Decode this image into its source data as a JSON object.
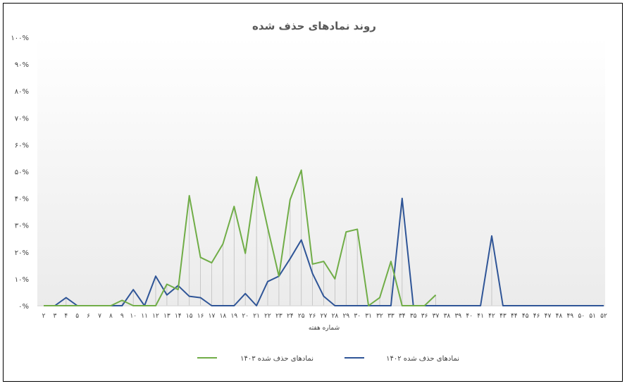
{
  "chart_data": {
    "type": "line",
    "title": "روند نمادهای حذف شده",
    "xlabel": "شماره هفته",
    "ylabel": "",
    "ylim": [
      0,
      100
    ],
    "ytick_labels": [
      "۰%",
      "۱۰%",
      "۲۰%",
      "۳۰%",
      "۴۰%",
      "۵۰%",
      "۶۰%",
      "۷۰%",
      "۸۰%",
      "۹۰%",
      "۱۰۰%"
    ],
    "x": [
      2,
      3,
      4,
      5,
      6,
      7,
      8,
      9,
      10,
      11,
      12,
      13,
      14,
      15,
      16,
      17,
      18,
      19,
      20,
      21,
      22,
      23,
      24,
      25,
      26,
      27,
      28,
      29,
      30,
      31,
      32,
      33,
      34,
      35,
      36,
      37,
      38,
      39,
      40,
      41,
      42,
      43,
      44,
      45,
      46,
      47,
      48,
      49,
      50,
      51,
      52
    ],
    "x_tick_labels": [
      "۲",
      "۳",
      "۴",
      "۵",
      "۶",
      "۷",
      "۸",
      "۹",
      "۱۰",
      "۱۱",
      "۱۲",
      "۱۳",
      "۱۴",
      "۱۵",
      "۱۶",
      "۱۷",
      "۱۸",
      "۱۹",
      "۲۰",
      "۲۱",
      "۲۲",
      "۲۳",
      "۲۴",
      "۲۵",
      "۲۶",
      "۲۷",
      "۲۸",
      "۲۹",
      "۳۰",
      "۳۱",
      "۳۲",
      "۳۳",
      "۳۴",
      "۳۵",
      "۳۶",
      "۳۷",
      "۳۸",
      "۳۹",
      "۴۰",
      "۴۱",
      "۴۲",
      "۴۳",
      "۴۴",
      "۴۵",
      "۴۶",
      "۴۷",
      "۴۸",
      "۴۹",
      "۵۰",
      "۵۱",
      "۵۲"
    ],
    "series": [
      {
        "name": "نمادهای حذف شده ۱۴۰۳",
        "color": "#70AD47",
        "values": [
          0,
          0,
          0,
          0,
          0,
          0,
          0,
          2,
          0,
          0,
          0,
          8,
          6,
          41,
          18,
          16,
          23,
          37,
          19.5,
          48,
          29,
          11,
          39.5,
          50.5,
          15.5,
          16.5,
          10,
          27.5,
          28.5,
          0,
          3,
          16.5,
          0,
          0,
          0,
          4,
          null,
          null,
          null,
          null,
          null,
          null,
          null,
          null,
          null,
          null,
          null,
          null,
          null,
          null,
          null
        ]
      },
      {
        "name": "نمادهای حذف شده ۱۴۰۲",
        "color": "#2F5597",
        "values": [
          0,
          0,
          3,
          0,
          0,
          0,
          0,
          0,
          6,
          0,
          11,
          4,
          7.5,
          3.5,
          3,
          0,
          0,
          0,
          4.5,
          0,
          9,
          11,
          17.5,
          24.5,
          12,
          3.5,
          0,
          0,
          0,
          0,
          0,
          0,
          40,
          0,
          0,
          0,
          0,
          0,
          0,
          0,
          26,
          0,
          0,
          0,
          0,
          0,
          0,
          0,
          0,
          0,
          0
        ]
      }
    ],
    "legend_position": "bottom",
    "grid": false,
    "drop_lines": true
  }
}
